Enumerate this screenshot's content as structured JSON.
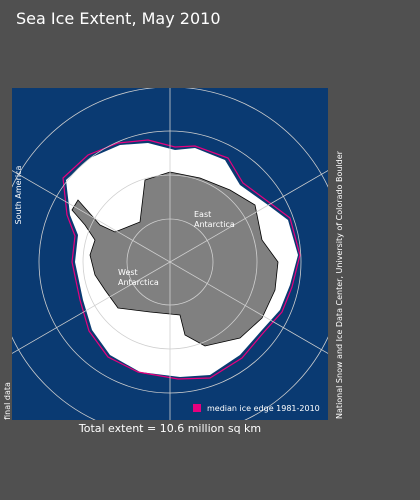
{
  "header": {
    "title": "Sea Ice Extent, May 2010"
  },
  "map": {
    "labels": {
      "south_america": "South America",
      "east_antarctica": [
        "East",
        "Antarctica"
      ],
      "west_antarctica": [
        "West",
        "Antarctica"
      ]
    },
    "legend": "median ice edge 1981-2010"
  },
  "footer": {
    "total_extent": "Total extent = 10.6 million sq km",
    "status": "final data",
    "credit": "National Snow and Ice Data Center, University of Colorado Boulder"
  }
}
